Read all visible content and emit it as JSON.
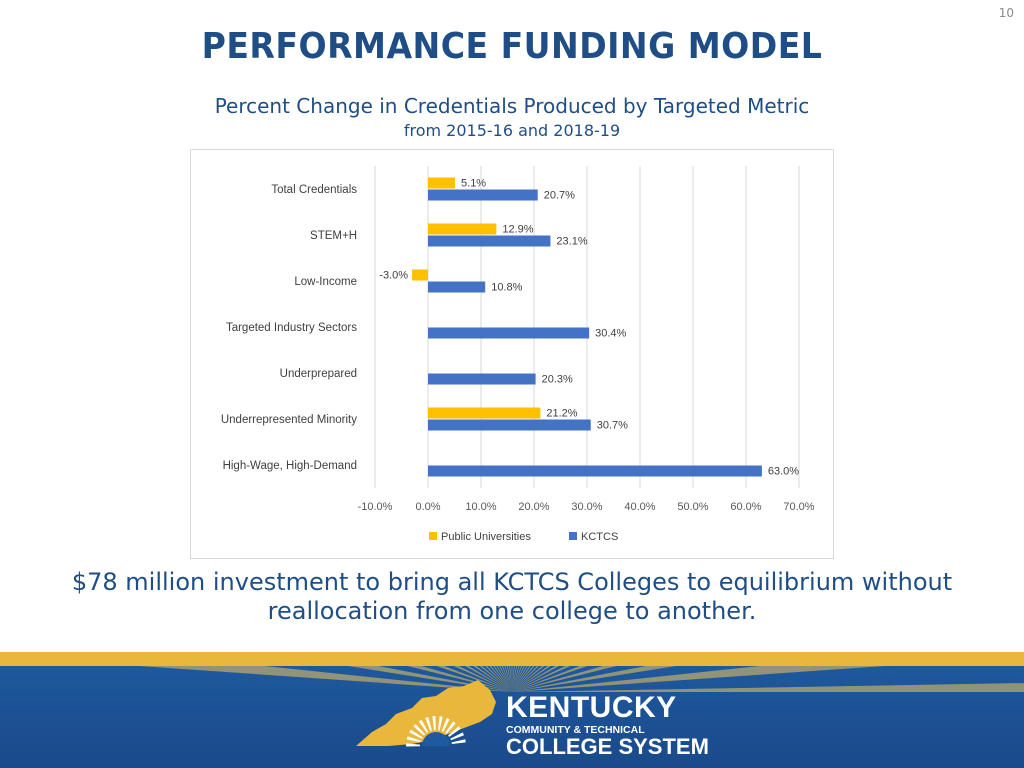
{
  "page": {
    "slide_number": "10",
    "title": "PERFORMANCE FUNDING MODEL",
    "note": "$78 million investment to bring all KCTCS Colleges to equilibrium without reallocation from one college to another."
  },
  "brand": {
    "line1": "KENTUCKY",
    "line2": "COMMUNITY & TECHNICAL",
    "line3": "COLLEGE SYSTEM"
  },
  "colors": {
    "title": "#1f4e86",
    "public_universities": "#ffc000",
    "kctcs": "#4472c4",
    "footer_blue": "#1f5aa0",
    "footer_gold": "#e9b73b"
  },
  "chart_data": {
    "type": "bar",
    "orientation": "horizontal",
    "title": "Percent Change in Credentials Produced by Targeted Metric",
    "subtitle": "from 2015-16 and 2018-19",
    "categories": [
      "Total Credentials",
      "STEM+H",
      "Low-Income",
      "Targeted Industry Sectors",
      "Underprepared",
      "Underrepresented Minority",
      "High-Wage, High-Demand"
    ],
    "series": [
      {
        "name": "Public Universities",
        "values": [
          5.1,
          12.9,
          -3.0,
          null,
          null,
          21.2,
          null
        ],
        "labels": [
          "5.1%",
          "12.9%",
          "-3.0%",
          "",
          "",
          "21.2%",
          ""
        ]
      },
      {
        "name": "KCTCS",
        "values": [
          20.7,
          23.1,
          10.8,
          30.4,
          20.3,
          30.7,
          63.0
        ],
        "labels": [
          "20.7%",
          "23.1%",
          "10.8%",
          "30.4%",
          "20.3%",
          "30.7%",
          "63.0%"
        ]
      }
    ],
    "xlim": [
      -10,
      70
    ],
    "xticks": [
      -10,
      0,
      10,
      20,
      30,
      40,
      50,
      60,
      70
    ],
    "xtick_labels": [
      "-10.0%",
      "0.0%",
      "10.0%",
      "20.0%",
      "30.0%",
      "40.0%",
      "50.0%",
      "60.0%",
      "70.0%"
    ],
    "gridlines": true,
    "legend": "bottom"
  }
}
